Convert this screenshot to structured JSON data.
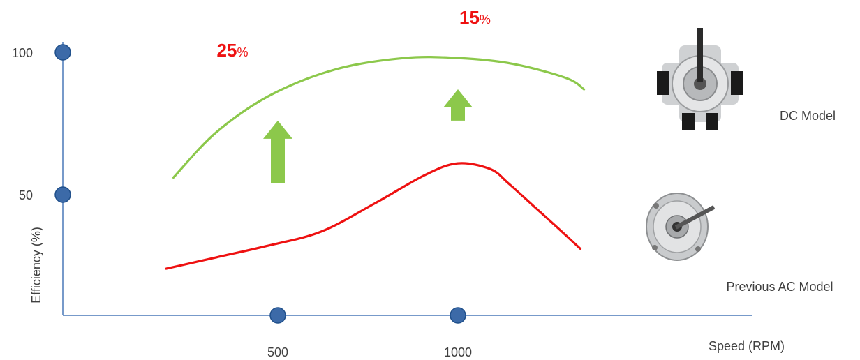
{
  "chart_data": {
    "type": "line",
    "xlabel": "Speed (RPM)",
    "ylabel": "Efficiency  (%)",
    "x_ticks": [
      500,
      1000
    ],
    "y_ticks": [
      50,
      100
    ],
    "xlim": [
      -75,
      1550
    ],
    "ylim": [
      7,
      100
    ],
    "grid": false,
    "series": [
      {
        "name": "DC Model",
        "color": "#8cc84b",
        "x": [
          210,
          330,
          480,
          660,
          850,
          1000,
          1150,
          1300,
          1350
        ],
        "y": [
          56,
          72,
          85,
          94,
          98,
          98,
          96,
          91,
          87
        ]
      },
      {
        "name": "Previous  AC Model",
        "color": "#ee1111",
        "x": [
          190,
          330,
          470,
          620,
          770,
          910,
          1000,
          1090,
          1140,
          1210,
          1280,
          1340
        ],
        "y": [
          24,
          28,
          32,
          37,
          47,
          57,
          61,
          59,
          54,
          46,
          38,
          31
        ]
      }
    ],
    "annotations": [
      {
        "text": "25",
        "unit": "%",
        "x": 470,
        "color": "#ee1111"
      },
      {
        "text": "15",
        "unit": "%",
        "x": 1000,
        "color": "#ee1111"
      }
    ],
    "arrows": [
      {
        "x": 500,
        "y_from": 54,
        "y_to": 76,
        "color": "#8cc84b"
      },
      {
        "x": 1000,
        "y_from": 76,
        "y_to": 87,
        "color": "#8cc84b"
      }
    ]
  }
}
